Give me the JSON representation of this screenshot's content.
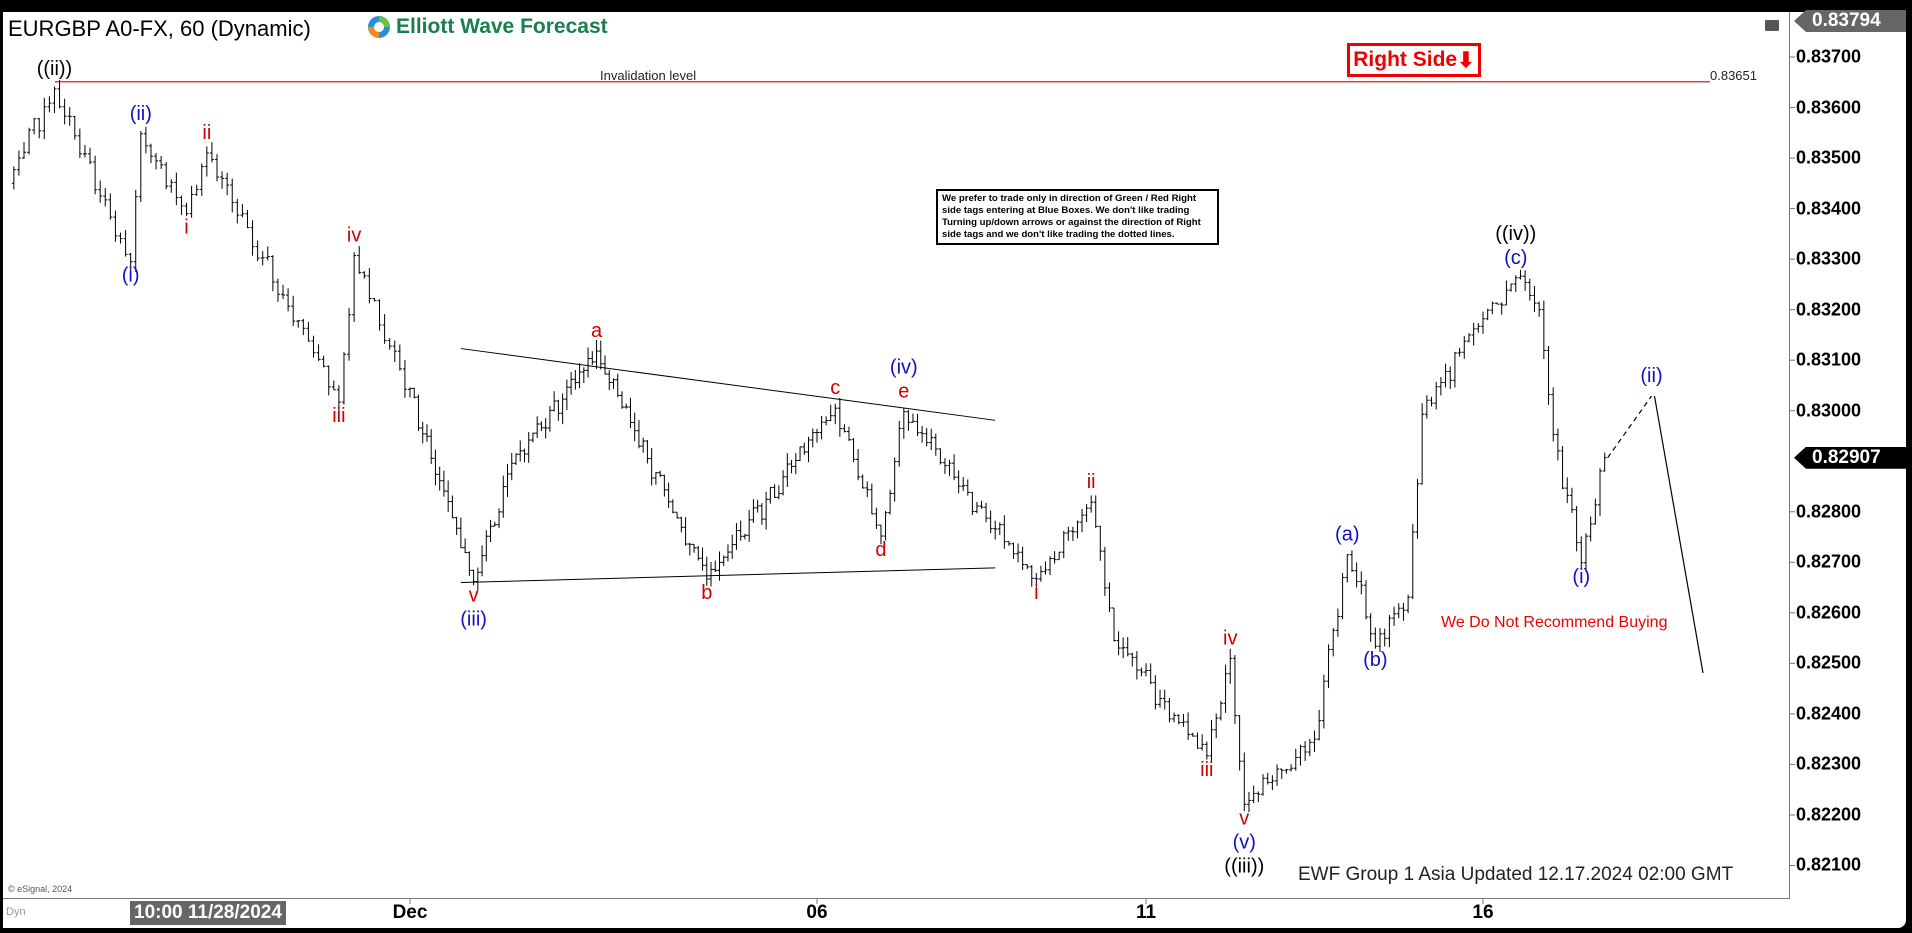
{
  "header": {
    "title": "EURGBP A0-FX, 60 (Dynamic)",
    "logo_text": "Elliott Wave Forecast"
  },
  "annotations": {
    "right_side": "Right Side",
    "right_side_color": "#e00000",
    "note": "We prefer to trade only in direction of Green / Red Right side tags entering at Blue Boxes. We don't like trading Turning up/down arrows or against the direction of Right side tags and we don't like trading the dotted lines.",
    "invalidation_label": "Invalidation level",
    "invalidation_value": "0.83651",
    "no_buy": "We Do Not Recommend Buying",
    "updated": "EWF Group 1 Asia Updated 12.17.2024 02:00 GMT",
    "copyright": "© eSignal, 2024",
    "dyn": "Dyn"
  },
  "chart_data": {
    "type": "ohlc",
    "instrument": "EURGBP",
    "interval": "60",
    "y_ticks": [
      "0.83700",
      "0.83600",
      "0.83500",
      "0.83400",
      "0.83300",
      "0.83200",
      "0.83100",
      "0.83000",
      "0.82800",
      "0.82700",
      "0.82600",
      "0.82500",
      "0.82400",
      "0.82300",
      "0.82200",
      "0.82100"
    ],
    "ylim": [
      0.8205,
      0.8381
    ],
    "x_ticks": [
      {
        "label": "10:00 11/28/2024",
        "date": "2024-11-28 10:00"
      },
      {
        "label": "Dec",
        "date": "2024-12-02 00:00"
      },
      {
        "label": "06",
        "date": "2024-12-06 00:00"
      },
      {
        "label": "11",
        "date": "2024-12-11 00:00"
      },
      {
        "label": "16",
        "date": "2024-12-16 00:00"
      }
    ],
    "high_price": "0.83794",
    "last_price": "0.82907",
    "invalidation_level": 0.83651,
    "price_path": [
      {
        "date": "2024-11-26 17:00",
        "price": 0.8345
      },
      {
        "date": "2024-11-27 02:00",
        "price": 0.83637,
        "labels": [
          {
            "t": "((ii))",
            "c": "black",
            "pos": "above"
          }
        ]
      },
      {
        "date": "2024-11-27 17:00",
        "price": 0.83295,
        "labels": [
          {
            "t": "(i)",
            "c": "blue",
            "pos": "below"
          }
        ]
      },
      {
        "date": "2024-11-27 19:00",
        "price": 0.83548,
        "labels": [
          {
            "t": "(ii)",
            "c": "blue",
            "pos": "above"
          }
        ]
      },
      {
        "date": "2024-11-28 04:00",
        "price": 0.8339,
        "labels": [
          {
            "t": "i",
            "c": "red",
            "pos": "below"
          }
        ]
      },
      {
        "date": "2024-11-28 08:00",
        "price": 0.8351,
        "labels": [
          {
            "t": "ii",
            "c": "red",
            "pos": "above"
          }
        ]
      },
      {
        "date": "2024-11-29 10:00",
        "price": 0.83017,
        "labels": [
          {
            "t": "iii",
            "c": "red",
            "pos": "below"
          }
        ]
      },
      {
        "date": "2024-11-29 13:00",
        "price": 0.83307,
        "labels": [
          {
            "t": "iv",
            "c": "red",
            "pos": "above"
          }
        ]
      },
      {
        "date": "2024-12-02 15:00",
        "price": 0.82662,
        "labels": [
          {
            "t": "v",
            "c": "red",
            "pos": "below"
          },
          {
            "t": "(iii)",
            "c": "blue",
            "pos": "below"
          }
        ]
      },
      {
        "date": "2024-12-03 00:00",
        "price": 0.82896
      },
      {
        "date": "2024-12-03 20:00",
        "price": 0.83118,
        "labels": [
          {
            "t": "a",
            "c": "red",
            "pos": "above"
          }
        ]
      },
      {
        "date": "2024-12-04 22:00",
        "price": 0.82667,
        "labels": [
          {
            "t": "b",
            "c": "red",
            "pos": "below"
          }
        ]
      },
      {
        "date": "2024-12-06 04:00",
        "price": 0.83005,
        "labels": [
          {
            "t": "c",
            "c": "red",
            "pos": "above"
          }
        ]
      },
      {
        "date": "2024-12-06 14:00",
        "price": 0.82752,
        "labels": [
          {
            "t": "d",
            "c": "red",
            "pos": "below"
          }
        ]
      },
      {
        "date": "2024-12-06 19:00",
        "price": 0.82998,
        "labels": [
          {
            "t": "e",
            "c": "red",
            "pos": "above"
          },
          {
            "t": "(iv)",
            "c": "blue",
            "pos": "above"
          }
        ]
      },
      {
        "date": "2024-12-10 00:00",
        "price": 0.82667,
        "labels": [
          {
            "t": "i",
            "c": "red",
            "pos": "below"
          }
        ]
      },
      {
        "date": "2024-12-10 12:00",
        "price": 0.82819,
        "labels": [
          {
            "t": "ii",
            "c": "red",
            "pos": "above"
          }
        ]
      },
      {
        "date": "2024-12-10 17:00",
        "price": 0.82545
      },
      {
        "date": "2024-12-11 13:00",
        "price": 0.82317,
        "labels": [
          {
            "t": "iii",
            "c": "red",
            "pos": "below"
          }
        ]
      },
      {
        "date": "2024-12-11 18:00",
        "price": 0.8251,
        "labels": [
          {
            "t": "iv",
            "c": "red",
            "pos": "above"
          }
        ]
      },
      {
        "date": "2024-12-11 21:00",
        "price": 0.82221,
        "labels": [
          {
            "t": "v",
            "c": "red",
            "pos": "below"
          },
          {
            "t": "(v)",
            "c": "blue",
            "pos": "below"
          },
          {
            "t": "((iii))",
            "c": "black",
            "pos": "below"
          }
        ]
      },
      {
        "date": "2024-12-12 12:00",
        "price": 0.8235
      },
      {
        "date": "2024-12-12 19:00",
        "price": 0.82715,
        "labels": [
          {
            "t": "(a)",
            "c": "blue",
            "pos": "above"
          }
        ]
      },
      {
        "date": "2024-12-13 01:00",
        "price": 0.82534,
        "labels": [
          {
            "t": "(b)",
            "c": "blue",
            "pos": "below"
          }
        ]
      },
      {
        "date": "2024-12-13 08:00",
        "price": 0.82631
      },
      {
        "date": "2024-12-13 11:00",
        "price": 0.82993
      },
      {
        "date": "2024-12-13 22:00",
        "price": 0.83162
      },
      {
        "date": "2024-12-16 07:00",
        "price": 0.83263,
        "labels": [
          {
            "t": "(c)",
            "c": "blue",
            "pos": "above"
          },
          {
            "t": "((iv))",
            "c": "black",
            "pos": "above"
          }
        ]
      },
      {
        "date": "2024-12-16 12:00",
        "price": 0.832
      },
      {
        "date": "2024-12-16 15:00",
        "price": 0.82953
      },
      {
        "date": "2024-12-16 21:00",
        "price": 0.82699,
        "labels": [
          {
            "t": "(i)",
            "c": "blue",
            "pos": "below"
          }
        ]
      },
      {
        "date": "2024-12-17 02:00",
        "price": 0.82907
      }
    ],
    "projection": [
      {
        "date": "2024-12-17 02:00",
        "price": 0.82907,
        "style": "dashed"
      },
      {
        "date": "2024-12-17 12:00",
        "price": 0.83029,
        "style": "solid",
        "labels": [
          {
            "t": "(ii)",
            "c": "blue",
            "pos": "above"
          }
        ]
      },
      {
        "date": "2024-12-17 23:00",
        "price": 0.82481
      }
    ],
    "triangle": [
      [
        {
          "date": "2024-12-02 12:00",
          "price": 0.83123
        },
        {
          "date": "2024-12-09 15:00",
          "price": 0.82981
        }
      ],
      [
        {
          "date": "2024-12-02 12:00",
          "price": 0.8266
        },
        {
          "date": "2024-12-09 15:00",
          "price": 0.82689
        }
      ]
    ],
    "colors": {
      "black": "#000000",
      "blue": "#1010c8",
      "red": "#d00000",
      "invalidation": "#d02020"
    }
  }
}
